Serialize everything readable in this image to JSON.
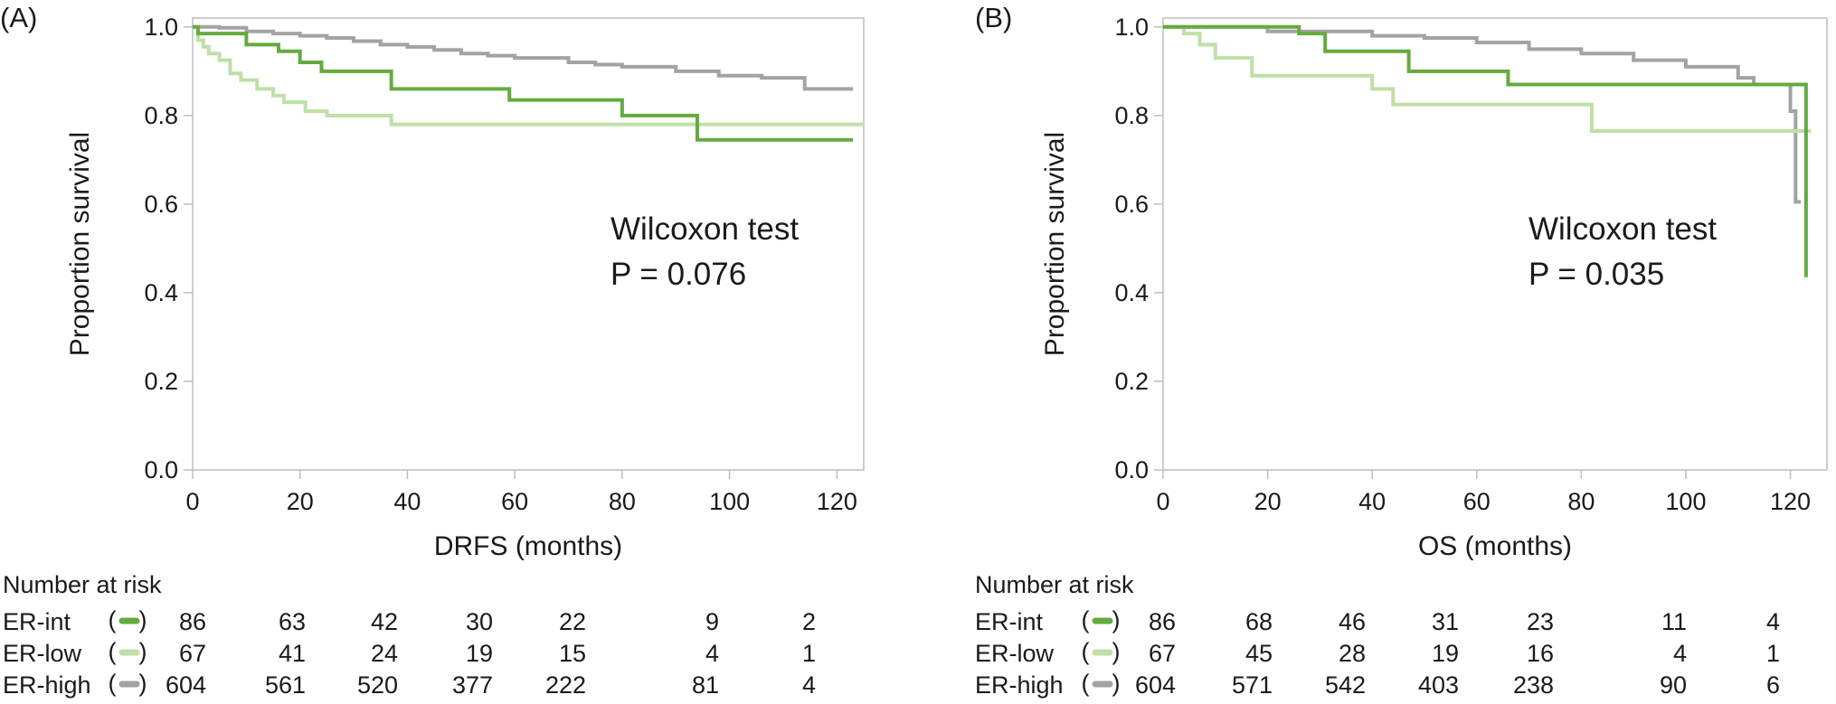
{
  "colors": {
    "ER-int": "#66aa3f",
    "ER-low": "#bfe0a7",
    "ER-high": "#a3a3a3",
    "axis": "#bdbdbd"
  },
  "chart_data": [
    {
      "type": "line",
      "panel_label": "(A)",
      "title": "",
      "xlabel": "DRFS (months)",
      "ylabel": "Proportion survival",
      "xlim": [
        0,
        125
      ],
      "ylim": [
        0,
        1.02
      ],
      "xticks": [
        "0",
        "20",
        "40",
        "60",
        "80",
        "100",
        "120"
      ],
      "yticks": [
        "0.0",
        "0.2",
        "0.4",
        "0.6",
        "0.8",
        "1.0"
      ],
      "annotation": {
        "line1": "Wilcoxon test",
        "line2": "P = 0.076"
      },
      "series": [
        {
          "name": "ER-int",
          "color": "#66aa3f",
          "x": [
            0,
            1,
            5,
            10,
            16,
            20,
            24,
            37,
            59,
            80,
            94,
            123
          ],
          "y": [
            1.0,
            0.985,
            0.985,
            0.96,
            0.945,
            0.92,
            0.9,
            0.86,
            0.835,
            0.8,
            0.745,
            0.745
          ]
        },
        {
          "name": "ER-low",
          "color": "#bfe0a7",
          "x": [
            0,
            1,
            2,
            3,
            5,
            7,
            9,
            12,
            15,
            17,
            21,
            25,
            37,
            125
          ],
          "y": [
            1.0,
            0.97,
            0.955,
            0.94,
            0.925,
            0.895,
            0.88,
            0.86,
            0.845,
            0.83,
            0.81,
            0.8,
            0.78,
            0.78
          ]
        },
        {
          "name": "ER-high",
          "color": "#a3a3a3",
          "x": [
            0,
            5,
            10,
            15,
            20,
            25,
            30,
            35,
            40,
            45,
            50,
            55,
            60,
            65,
            70,
            75,
            80,
            90,
            98,
            106,
            114,
            123
          ],
          "y": [
            1.0,
            0.998,
            0.99,
            0.985,
            0.98,
            0.975,
            0.968,
            0.96,
            0.955,
            0.948,
            0.94,
            0.935,
            0.93,
            0.93,
            0.92,
            0.915,
            0.91,
            0.9,
            0.89,
            0.885,
            0.86,
            0.86
          ]
        }
      ],
      "risk_table": {
        "heading": "Number at risk",
        "rows": [
          {
            "label": "ER-int",
            "marker_open": "(",
            "marker_close": ")",
            "values": [
              "86",
              "63",
              "42",
              "30",
              "22",
              "9",
              "2"
            ]
          },
          {
            "label": "ER-low",
            "marker_open": "(",
            "marker_close": ")",
            "values": [
              "67",
              "41",
              "24",
              "19",
              "15",
              "4",
              "1"
            ]
          },
          {
            "label": "ER-high",
            "marker_open": "(",
            "marker_close": ")",
            "values": [
              "604",
              "561",
              "520",
              "377",
              "222",
              "81",
              "4"
            ]
          }
        ]
      }
    },
    {
      "type": "line",
      "panel_label": "(B)",
      "title": "",
      "xlabel": "OS (months)",
      "ylabel": "Proportion survival",
      "xlim": [
        0,
        127
      ],
      "ylim": [
        0,
        1.02
      ],
      "xticks": [
        "0",
        "20",
        "40",
        "60",
        "80",
        "100",
        "120"
      ],
      "yticks": [
        "0.0",
        "0.2",
        "0.4",
        "0.6",
        "0.8",
        "1.0"
      ],
      "annotation": {
        "line1": "Wilcoxon test",
        "line2": "P = 0.035"
      },
      "series": [
        {
          "name": "ER-int",
          "color": "#66aa3f",
          "x": [
            0,
            26,
            31,
            47,
            66,
            123,
            123
          ],
          "y": [
            1.0,
            0.985,
            0.945,
            0.9,
            0.87,
            0.87,
            0.435
          ]
        },
        {
          "name": "ER-low",
          "color": "#bfe0a7",
          "x": [
            0,
            4,
            7,
            10,
            17,
            40,
            44,
            82,
            124
          ],
          "y": [
            1.0,
            0.985,
            0.96,
            0.93,
            0.89,
            0.86,
            0.825,
            0.765,
            0.765
          ]
        },
        {
          "name": "ER-high",
          "color": "#a3a3a3",
          "x": [
            0,
            20,
            40,
            50,
            60,
            70,
            80,
            90,
            100,
            110,
            113,
            115,
            120,
            121,
            122
          ],
          "y": [
            1.0,
            0.99,
            0.98,
            0.975,
            0.965,
            0.95,
            0.94,
            0.925,
            0.91,
            0.885,
            0.87,
            0.87,
            0.81,
            0.605,
            0.605
          ]
        }
      ],
      "risk_table": {
        "heading": "Number at risk",
        "rows": [
          {
            "label": "ER-int",
            "marker_open": "(",
            "marker_close": ")",
            "values": [
              "86",
              "68",
              "46",
              "31",
              "23",
              "11",
              "4"
            ]
          },
          {
            "label": "ER-low",
            "marker_open": "(",
            "marker_close": ")",
            "values": [
              "67",
              "45",
              "28",
              "19",
              "16",
              "4",
              "1"
            ]
          },
          {
            "label": "ER-high",
            "marker_open": "(",
            "marker_close": ")",
            "values": [
              "604",
              "571",
              "542",
              "403",
              "238",
              "90",
              "6"
            ]
          }
        ]
      }
    }
  ]
}
